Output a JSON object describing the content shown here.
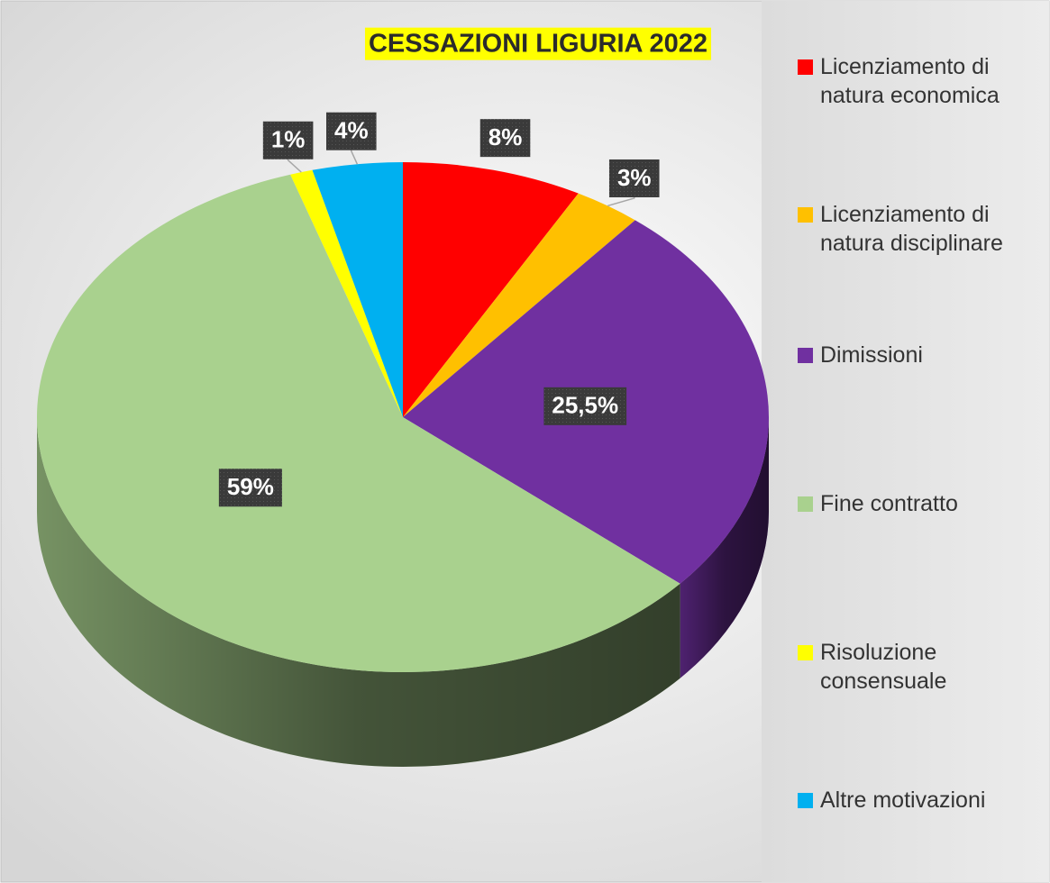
{
  "chart_data": {
    "type": "pie",
    "title": "CESSAZIONI LIGURIA 2022",
    "categories": [
      "Licenziamento di natura economica",
      "Licenziamento di natura disciplinare",
      "Dimissioni",
      "Fine contratto",
      "Risoluzione consensuale",
      "Altre motivazioni"
    ],
    "values": [
      8,
      3,
      25.5,
      59,
      1,
      4
    ],
    "value_labels": [
      "8%",
      "3%",
      "25,5%",
      "59%",
      "1%",
      "4%"
    ],
    "colors": [
      "#ff0000",
      "#ffc000",
      "#7030a0",
      "#a9d18e",
      "#ffff00",
      "#00b0f0"
    ],
    "legend": "right"
  }
}
